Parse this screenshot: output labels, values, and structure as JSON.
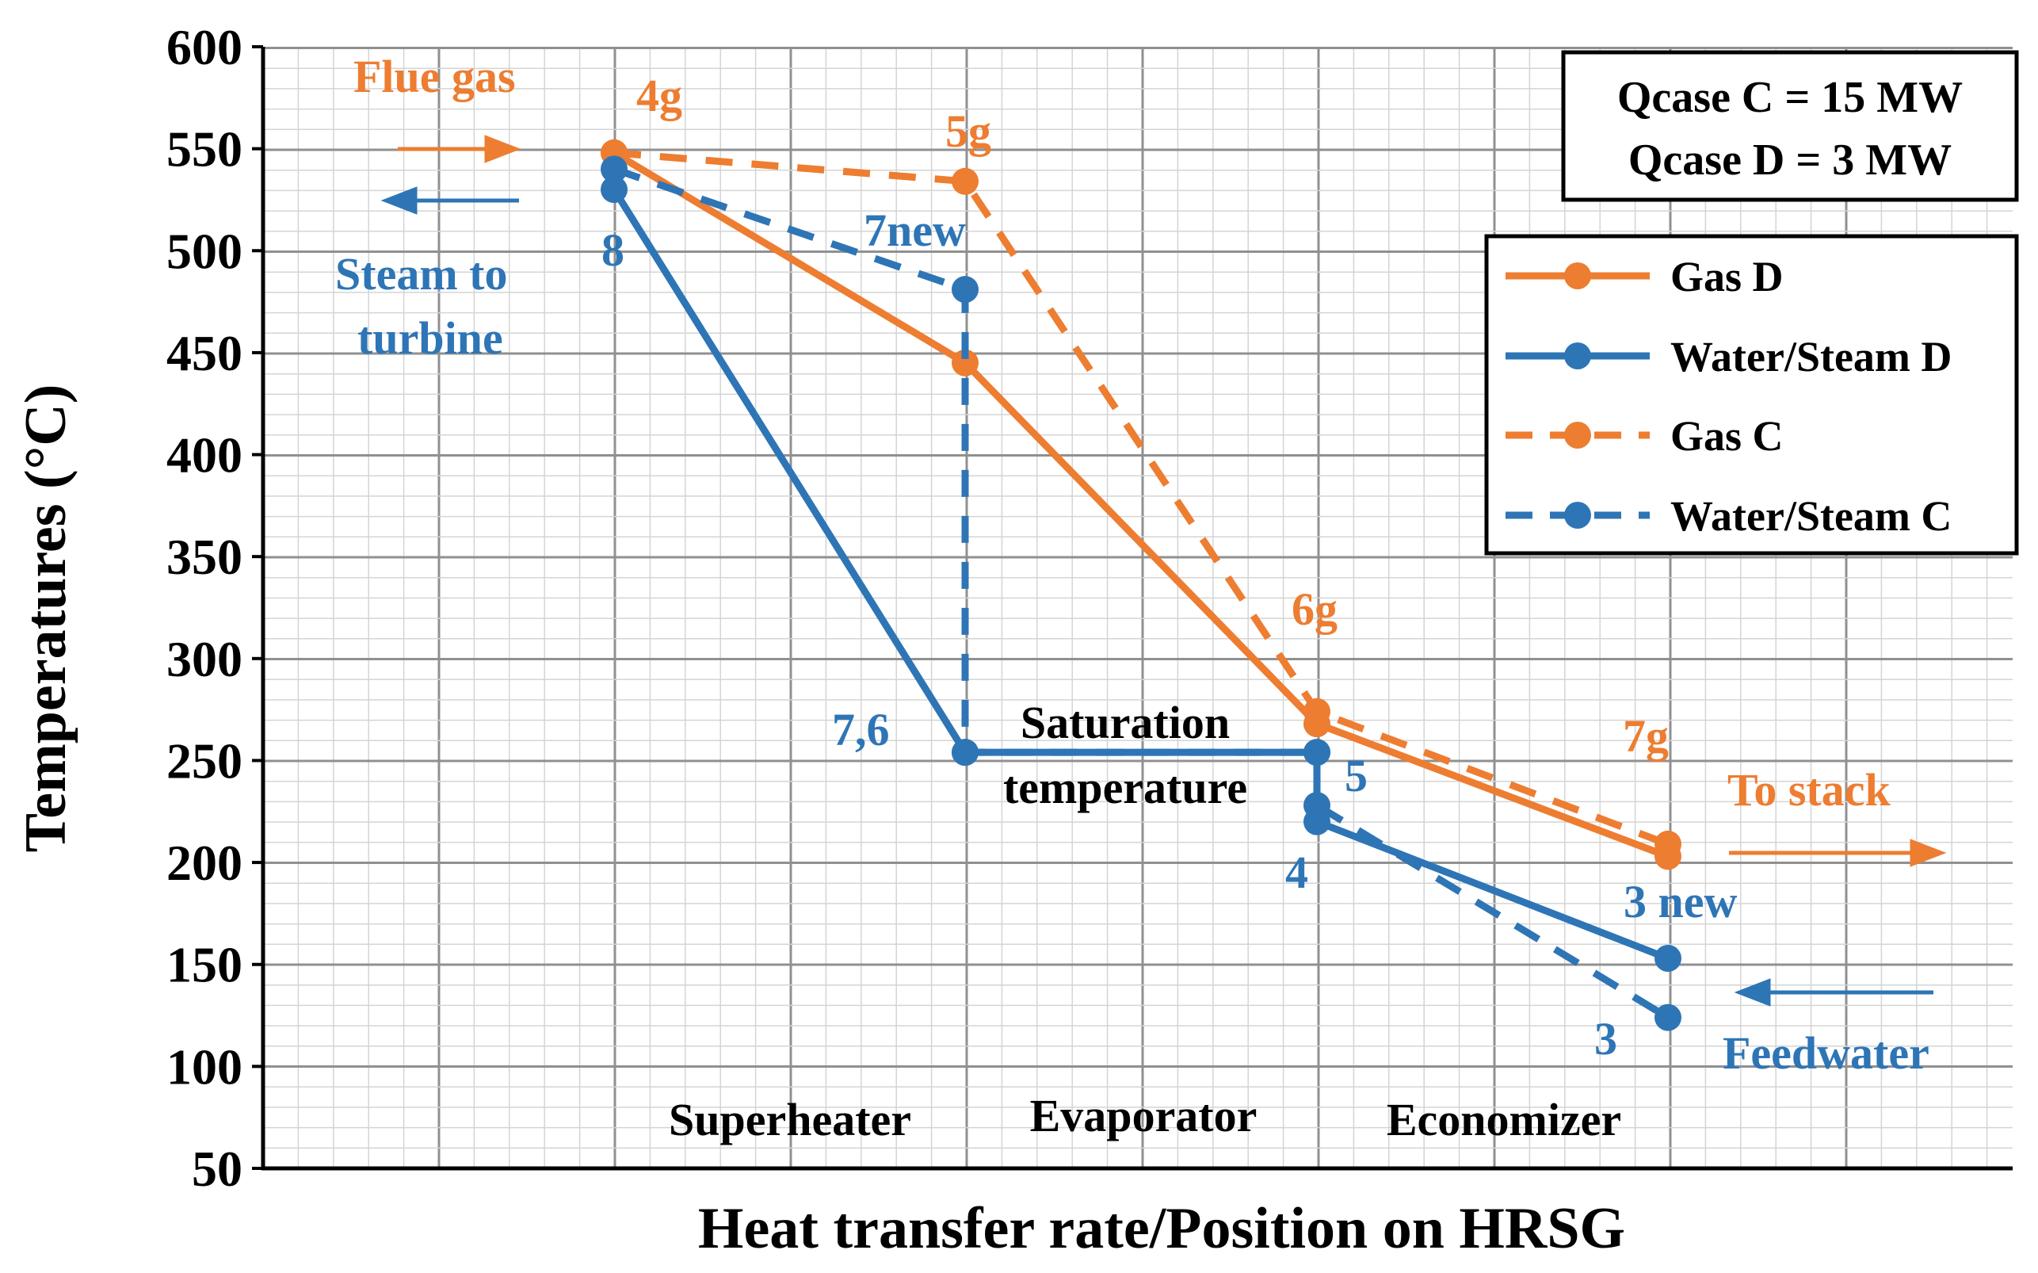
{
  "chart_data": {
    "type": "line",
    "title": "",
    "xlabel": "Heat transfer rate/Position on HRSG",
    "ylabel": "Temperatures (°C)",
    "ylim": [
      50,
      600
    ],
    "yticks": [
      "600",
      "550",
      "500",
      "450",
      "400",
      "350",
      "300",
      "250",
      "200",
      "150",
      "100",
      "50"
    ],
    "grid": true,
    "x_scale": "categorical positions: 1 = superheater inlet, 2 = superheater/evaporator boundary, 3 = evaporator/economizer boundary, 4 = economizer outlet",
    "legend_position": "right",
    "series": [
      {
        "name": "Gas D",
        "color": "#ED7D31",
        "dash": false,
        "x": [
          1,
          2,
          3,
          4
        ],
        "y": [
          548,
          445,
          268,
          203
        ]
      },
      {
        "name": "Water/Steam D",
        "color": "#2E75B6",
        "dash": false,
        "x": [
          1,
          2,
          3,
          3,
          4
        ],
        "y": [
          530,
          254,
          254,
          220,
          153
        ]
      },
      {
        "name": "Gas C",
        "color": "#ED7D31",
        "dash": true,
        "x": [
          1,
          2,
          3,
          4
        ],
        "y": [
          548,
          534,
          274,
          209
        ]
      },
      {
        "name": "Water/Steam C",
        "color": "#2E75B6",
        "dash": true,
        "x": [
          1,
          2,
          2,
          3,
          3,
          4
        ],
        "y": [
          540,
          481,
          254,
          254,
          228,
          124
        ]
      }
    ],
    "point_labels": [
      {
        "text": "4g",
        "color": "#ED7D31"
      },
      {
        "text": "5g",
        "color": "#ED7D31"
      },
      {
        "text": "6g",
        "color": "#ED7D31"
      },
      {
        "text": "7g",
        "color": "#ED7D31"
      },
      {
        "text": "8",
        "color": "#2E75B6"
      },
      {
        "text": "7new",
        "color": "#2E75B6"
      },
      {
        "text": "7,6",
        "color": "#2E75B6"
      },
      {
        "text": "5",
        "color": "#2E75B6"
      },
      {
        "text": "4",
        "color": "#2E75B6"
      },
      {
        "text": "3 new",
        "color": "#2E75B6"
      },
      {
        "text": "3",
        "color": "#2E75B6"
      }
    ],
    "annotations": {
      "flue_gas": "Flue gas",
      "steam_to_turbine_1": "Steam to",
      "steam_to_turbine_2": "turbine",
      "to_stack": "To stack",
      "feedwater": "Feedwater",
      "saturation_1": "Saturation",
      "saturation_2": "temperature",
      "superheater": "Superheater",
      "evaporator": "Evaporator",
      "economizer": "Economizer"
    },
    "info_box": {
      "line1": "Qcase C = 15 MW",
      "line2": "Qcase D = 3 MW"
    }
  }
}
